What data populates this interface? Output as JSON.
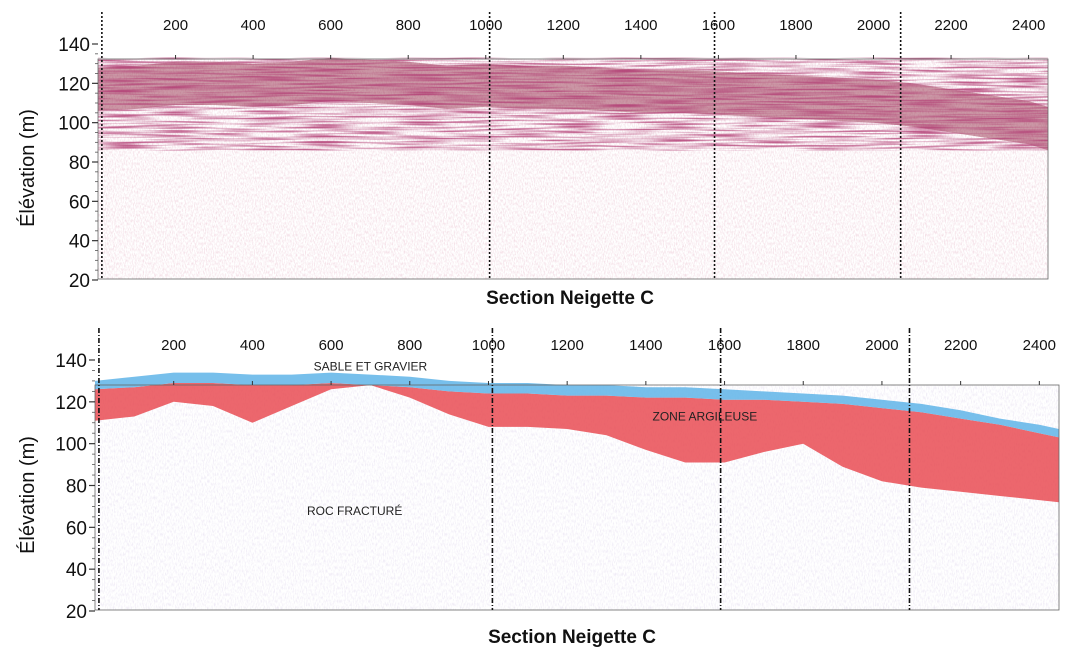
{
  "chart_data": [
    {
      "type": "area",
      "panel": "top",
      "title": "Section Neigette C",
      "xlabel": "",
      "ylabel": "Élévation (m)",
      "xlim": [
        0,
        2450
      ],
      "ylim": [
        20,
        140
      ],
      "x_ticks": [
        200,
        400,
        600,
        800,
        1000,
        1200,
        1400,
        1600,
        1800,
        2000,
        2200,
        2400
      ],
      "y_ticks": [
        20,
        40,
        60,
        80,
        100,
        120,
        140
      ],
      "section_markers": [
        10,
        1010,
        1590,
        2070
      ],
      "series": [
        {
          "x": [
            0,
            100,
            200,
            300,
            400,
            500,
            600,
            700,
            800,
            900,
            1000,
            1100,
            1200,
            1300,
            1400,
            1500,
            1600,
            1700,
            1800,
            1900,
            2000,
            2100,
            2200,
            2300,
            2400,
            2450
          ],
          "values": [
            128,
            129,
            131,
            131,
            130,
            131,
            133,
            132,
            131,
            129,
            130,
            129,
            129,
            128,
            127,
            127,
            126,
            125,
            124,
            123,
            122,
            120,
            117,
            114,
            111,
            108
          ]
        }
      ],
      "colors": {
        "reflector": "#8c1a3a",
        "noise": "#c98aa0",
        "marker": "#111111"
      }
    },
    {
      "type": "area",
      "panel": "bottom",
      "title": "Section Neigette C",
      "xlabel": "",
      "ylabel": "Élévation (m)",
      "xlim": [
        0,
        2450
      ],
      "ylim": [
        20,
        140
      ],
      "x_ticks": [
        200,
        400,
        600,
        800,
        1000,
        1200,
        1400,
        1600,
        1800,
        2000,
        2200,
        2400
      ],
      "y_ticks": [
        20,
        40,
        60,
        80,
        100,
        120,
        140
      ],
      "section_markers": [
        10,
        1010,
        1590,
        2070
      ],
      "series": [
        {
          "name": "SABLE ET GRAVIER",
          "x": [
            0,
            100,
            200,
            300,
            400,
            500,
            600,
            700,
            800,
            900,
            1000,
            1100,
            1200,
            1300,
            1400,
            1500,
            1600,
            1700,
            1800,
            1900,
            2000,
            2100,
            2200,
            2300,
            2400,
            2450
          ],
          "top": [
            130,
            132,
            134,
            134,
            133,
            133,
            134,
            133,
            132,
            130,
            129,
            129,
            128,
            128,
            127,
            127,
            126,
            125,
            124,
            123,
            121,
            119,
            116,
            112,
            109,
            107
          ],
          "bottom": [
            126,
            127,
            129,
            129,
            128,
            128,
            129,
            128,
            127,
            125,
            124,
            124,
            123,
            123,
            122,
            122,
            121,
            121,
            120,
            119,
            117,
            115,
            112,
            109,
            105,
            103
          ]
        },
        {
          "name": "ZONE ARGILEUSE",
          "x": [
            0,
            100,
            200,
            300,
            400,
            500,
            600,
            700,
            800,
            900,
            1000,
            1100,
            1200,
            1300,
            1400,
            1500,
            1600,
            1700,
            1800,
            1900,
            2000,
            2100,
            2200,
            2300,
            2400,
            2450
          ],
          "top": [
            126,
            127,
            129,
            129,
            128,
            128,
            129,
            128,
            127,
            125,
            124,
            124,
            123,
            123,
            122,
            122,
            121,
            121,
            120,
            119,
            117,
            115,
            112,
            109,
            105,
            103
          ],
          "bottom": [
            111,
            113,
            120,
            118,
            110,
            118,
            126,
            128,
            122,
            114,
            108,
            108,
            107,
            104,
            97,
            91,
            91,
            96,
            100,
            89,
            82,
            79,
            77,
            75,
            73,
            72
          ]
        },
        {
          "name": "ROC FRACTURÉ"
        }
      ],
      "label_positions": {
        "SABLE ET GRAVIER": {
          "x": 700,
          "y": 135
        },
        "ZONE ARGILEUSE": {
          "x": 1550,
          "y": 111
        },
        "ROC FRACTURÉ": {
          "x": 660,
          "y": 66
        }
      },
      "colors": {
        "sand": "#5fb4e8",
        "clay": "#e8464d",
        "noise": "#b3a4c8",
        "marker": "#111111"
      }
    }
  ]
}
